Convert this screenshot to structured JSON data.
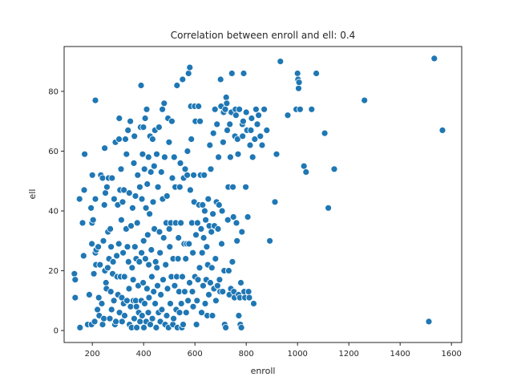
{
  "chart_data": {
    "type": "scatter",
    "title": "Correlation between enroll and ell: 0.4",
    "xlabel": "enroll",
    "ylabel": "ell",
    "xlim": [
      90,
      1640
    ],
    "ylim": [
      -4,
      95
    ],
    "xticks": [
      200,
      400,
      600,
      800,
      1000,
      1200,
      1400,
      1600
    ],
    "yticks": [
      0,
      20,
      40,
      60,
      80
    ],
    "grid": false,
    "marker_color": "#1f77b4",
    "marker_edge_color": "#ffffff",
    "points": [
      [
        130,
        19
      ],
      [
        133,
        17
      ],
      [
        133,
        11
      ],
      [
        152,
        1
      ],
      [
        150,
        44
      ],
      [
        162,
        36
      ],
      [
        166,
        25
      ],
      [
        168,
        47
      ],
      [
        170,
        59
      ],
      [
        182,
        2
      ],
      [
        188,
        12
      ],
      [
        195,
        41
      ],
      [
        197,
        2
      ],
      [
        198,
        29
      ],
      [
        199,
        36
      ],
      [
        200,
        52
      ],
      [
        203,
        37
      ],
      [
        206,
        19
      ],
      [
        209,
        3
      ],
      [
        212,
        77
      ],
      [
        212,
        26
      ],
      [
        212,
        44
      ],
      [
        214,
        22
      ],
      [
        215,
        27
      ],
      [
        220,
        7
      ],
      [
        223,
        28
      ],
      [
        225,
        11
      ],
      [
        227,
        5
      ],
      [
        230,
        22
      ],
      [
        233,
        52
      ],
      [
        237,
        9
      ],
      [
        240,
        51
      ],
      [
        240,
        2
      ],
      [
        243,
        30
      ],
      [
        245,
        4
      ],
      [
        247,
        42
      ],
      [
        248,
        61
      ],
      [
        249,
        20
      ],
      [
        251,
        46
      ],
      [
        253,
        16
      ],
      [
        255,
        14
      ],
      [
        257,
        48
      ],
      [
        260,
        21
      ],
      [
        261,
        33
      ],
      [
        263,
        51
      ],
      [
        265,
        24
      ],
      [
        268,
        4
      ],
      [
        270,
        34
      ],
      [
        272,
        13
      ],
      [
        273,
        28
      ],
      [
        275,
        7
      ],
      [
        277,
        51
      ],
      [
        279,
        19
      ],
      [
        281,
        23
      ],
      [
        284,
        10
      ],
      [
        285,
        44
      ],
      [
        288,
        2
      ],
      [
        290,
        63
      ],
      [
        292,
        3
      ],
      [
        295,
        25
      ],
      [
        297,
        18
      ],
      [
        299,
        42
      ],
      [
        300,
        12
      ],
      [
        303,
        29
      ],
      [
        304,
        64
      ],
      [
        305,
        71
      ],
      [
        306,
        6
      ],
      [
        308,
        47
      ],
      [
        310,
        18
      ],
      [
        312,
        54
      ],
      [
        313,
        37
      ],
      [
        315,
        11
      ],
      [
        316,
        3
      ],
      [
        318,
        43
      ],
      [
        320,
        26
      ],
      [
        322,
        9
      ],
      [
        323,
        47
      ],
      [
        325,
        18
      ],
      [
        326,
        5
      ],
      [
        329,
        64
      ],
      [
        332,
        34
      ],
      [
        333,
        59
      ],
      [
        335,
        10
      ],
      [
        337,
        28
      ],
      [
        339,
        67
      ],
      [
        341,
        23
      ],
      [
        343,
        14
      ],
      [
        344,
        46
      ],
      [
        345,
        2
      ],
      [
        348,
        70
      ],
      [
        349,
        8
      ],
      [
        351,
        35
      ],
      [
        353,
        1
      ],
      [
        355,
        21
      ],
      [
        357,
        41
      ],
      [
        359,
        17
      ],
      [
        360,
        10
      ],
      [
        362,
        56
      ],
      [
        363,
        4
      ],
      [
        364,
        65
      ],
      [
        366,
        28
      ],
      [
        368,
        45
      ],
      [
        369,
        10
      ],
      [
        371,
        24
      ],
      [
        372,
        8
      ],
      [
        373,
        1
      ],
      [
        375,
        36
      ],
      [
        377,
        52
      ],
      [
        379,
        15
      ],
      [
        381,
        6
      ],
      [
        383,
        23
      ],
      [
        385,
        48
      ],
      [
        386,
        3
      ],
      [
        388,
        68
      ],
      [
        390,
        82
      ],
      [
        391,
        10
      ],
      [
        392,
        26
      ],
      [
        393,
        44
      ],
      [
        394,
        5
      ],
      [
        396,
        59
      ],
      [
        398,
        16
      ],
      [
        399,
        68
      ],
      [
        400,
        30
      ],
      [
        401,
        1
      ],
      [
        403,
        54
      ],
      [
        404,
        9
      ],
      [
        406,
        71
      ],
      [
        407,
        24
      ],
      [
        409,
        41
      ],
      [
        410,
        3
      ],
      [
        412,
        74
      ],
      [
        413,
        14
      ],
      [
        414,
        49
      ],
      [
        416,
        32
      ],
      [
        418,
        6
      ],
      [
        419,
        58
      ],
      [
        420,
        22
      ],
      [
        421,
        11
      ],
      [
        423,
        39
      ],
      [
        425,
        65
      ],
      [
        426,
        2
      ],
      [
        428,
        53
      ],
      [
        430,
        27
      ],
      [
        432,
        18
      ],
      [
        434,
        4
      ],
      [
        435,
        64
      ],
      [
        437,
        43
      ],
      [
        439,
        13
      ],
      [
        441,
        55
      ],
      [
        442,
        34
      ],
      [
        444,
        67
      ],
      [
        445,
        9
      ],
      [
        447,
        23
      ],
      [
        449,
        1
      ],
      [
        451,
        59
      ],
      [
        452,
        21
      ],
      [
        454,
        15
      ],
      [
        456,
        48
      ],
      [
        458,
        6
      ],
      [
        460,
        68
      ],
      [
        462,
        33
      ],
      [
        464,
        26
      ],
      [
        465,
        3
      ],
      [
        467,
        12
      ],
      [
        469,
        53
      ],
      [
        471,
        7
      ],
      [
        473,
        74
      ],
      [
        474,
        44
      ],
      [
        476,
        17
      ],
      [
        478,
        31
      ],
      [
        480,
        76
      ],
      [
        482,
        58
      ],
      [
        484,
        2
      ],
      [
        486,
        22
      ],
      [
        488,
        36
      ],
      [
        490,
        5
      ],
      [
        491,
        45
      ],
      [
        493,
        14
      ],
      [
        495,
        71
      ],
      [
        497,
        1
      ],
      [
        499,
        63
      ],
      [
        500,
        34
      ],
      [
        502,
        28
      ],
      [
        504,
        9
      ],
      [
        506,
        36
      ],
      [
        508,
        18
      ],
      [
        510,
        70
      ],
      [
        512,
        51
      ],
      [
        514,
        2
      ],
      [
        515,
        24
      ],
      [
        517,
        4
      ],
      [
        519,
        58
      ],
      [
        521,
        15
      ],
      [
        523,
        48
      ],
      [
        525,
        36
      ],
      [
        527,
        7
      ],
      [
        529,
        18
      ],
      [
        530,
        82
      ],
      [
        532,
        1
      ],
      [
        534,
        24
      ],
      [
        536,
        31
      ],
      [
        538,
        13
      ],
      [
        540,
        6
      ],
      [
        541,
        48
      ],
      [
        543,
        56
      ],
      [
        545,
        36
      ],
      [
        547,
        9
      ],
      [
        549,
        1
      ],
      [
        551,
        18
      ],
      [
        552,
        84
      ],
      [
        554,
        2
      ],
      [
        556,
        51
      ],
      [
        558,
        29
      ],
      [
        560,
        13
      ],
      [
        562,
        54
      ],
      [
        564,
        24
      ],
      [
        566,
        6
      ],
      [
        568,
        29
      ],
      [
        570,
        52
      ],
      [
        571,
        60
      ],
      [
        573,
        10
      ],
      [
        575,
        86
      ],
      [
        577,
        29
      ],
      [
        579,
        16
      ],
      [
        580,
        88
      ],
      [
        582,
        47
      ],
      [
        584,
        75
      ],
      [
        586,
        64
      ],
      [
        588,
        36
      ],
      [
        590,
        13
      ],
      [
        592,
        26
      ],
      [
        593,
        8
      ],
      [
        595,
        52
      ],
      [
        597,
        43
      ],
      [
        599,
        75
      ],
      [
        600,
        18
      ],
      [
        602,
        70
      ],
      [
        604,
        32
      ],
      [
        606,
        2
      ],
      [
        608,
        10
      ],
      [
        610,
        36
      ],
      [
        612,
        17
      ],
      [
        614,
        75
      ],
      [
        616,
        42
      ],
      [
        618,
        21
      ],
      [
        620,
        70
      ],
      [
        622,
        52
      ],
      [
        624,
        34
      ],
      [
        626,
        6
      ],
      [
        628,
        26
      ],
      [
        630,
        42
      ],
      [
        632,
        15
      ],
      [
        634,
        31
      ],
      [
        636,
        52
      ],
      [
        638,
        40
      ],
      [
        640,
        9
      ],
      [
        642,
        37
      ],
      [
        644,
        17
      ],
      [
        646,
        28
      ],
      [
        648,
        5
      ],
      [
        650,
        22
      ],
      [
        652,
        44
      ],
      [
        654,
        12
      ],
      [
        656,
        35
      ],
      [
        658,
        62
      ],
      [
        660,
        16
      ],
      [
        662,
        54
      ],
      [
        664,
        33
      ],
      [
        666,
        21
      ],
      [
        668,
        5
      ],
      [
        670,
        39
      ],
      [
        672,
        66
      ],
      [
        674,
        14
      ],
      [
        676,
        35
      ],
      [
        678,
        74
      ],
      [
        680,
        24
      ],
      [
        682,
        10
      ],
      [
        684,
        43
      ],
      [
        686,
        69
      ],
      [
        688,
        15
      ],
      [
        690,
        34
      ],
      [
        692,
        58
      ],
      [
        694,
        42
      ],
      [
        696,
        17
      ],
      [
        698,
        13
      ],
      [
        700,
        84
      ],
      [
        702,
        75
      ],
      [
        704,
        29
      ],
      [
        706,
        40
      ],
      [
        708,
        13
      ],
      [
        710,
        63
      ],
      [
        712,
        73
      ],
      [
        714,
        20
      ],
      [
        716,
        2
      ],
      [
        718,
        74
      ],
      [
        720,
        1
      ],
      [
        722,
        78
      ],
      [
        724,
        76
      ],
      [
        726,
        67
      ],
      [
        728,
        37
      ],
      [
        730,
        48
      ],
      [
        732,
        20
      ],
      [
        734,
        12
      ],
      [
        736,
        69
      ],
      [
        738,
        58
      ],
      [
        740,
        14
      ],
      [
        742,
        73
      ],
      [
        744,
        86
      ],
      [
        746,
        23
      ],
      [
        748,
        48
      ],
      [
        750,
        38
      ],
      [
        752,
        13
      ],
      [
        754,
        11
      ],
      [
        756,
        65
      ],
      [
        758,
        74
      ],
      [
        760,
        72
      ],
      [
        762,
        36
      ],
      [
        764,
        30
      ],
      [
        766,
        64
      ],
      [
        768,
        59
      ],
      [
        770,
        12
      ],
      [
        771,
        5
      ],
      [
        773,
        74
      ],
      [
        775,
        11
      ],
      [
        777,
        2
      ],
      [
        779,
        16
      ],
      [
        781,
        1
      ],
      [
        783,
        33
      ],
      [
        785,
        69
      ],
      [
        786,
        65
      ],
      [
        788,
        70
      ],
      [
        790,
        86
      ],
      [
        792,
        13
      ],
      [
        795,
        11
      ],
      [
        798,
        48
      ],
      [
        800,
        73
      ],
      [
        803,
        67
      ],
      [
        806,
        38
      ],
      [
        809,
        13
      ],
      [
        812,
        11
      ],
      [
        815,
        62
      ],
      [
        818,
        67
      ],
      [
        821,
        71
      ],
      [
        825,
        58
      ],
      [
        829,
        9
      ],
      [
        833,
        64
      ],
      [
        838,
        74
      ],
      [
        843,
        69
      ],
      [
        848,
        72
      ],
      [
        855,
        65
      ],
      [
        862,
        62
      ],
      [
        870,
        74
      ],
      [
        880,
        67
      ],
      [
        892,
        30
      ],
      [
        912,
        43
      ],
      [
        918,
        59
      ],
      [
        933,
        90
      ],
      [
        962,
        72
      ],
      [
        995,
        74
      ],
      [
        1000,
        86
      ],
      [
        1002,
        84
      ],
      [
        1004,
        81
      ],
      [
        1006,
        83
      ],
      [
        1010,
        74
      ],
      [
        1025,
        55
      ],
      [
        1033,
        53
      ],
      [
        1055,
        74
      ],
      [
        1073,
        86
      ],
      [
        1106,
        66
      ],
      [
        1120,
        41
      ],
      [
        1143,
        54
      ],
      [
        1261,
        77
      ],
      [
        1512,
        3
      ],
      [
        1533,
        91
      ],
      [
        1565,
        67
      ]
    ]
  }
}
